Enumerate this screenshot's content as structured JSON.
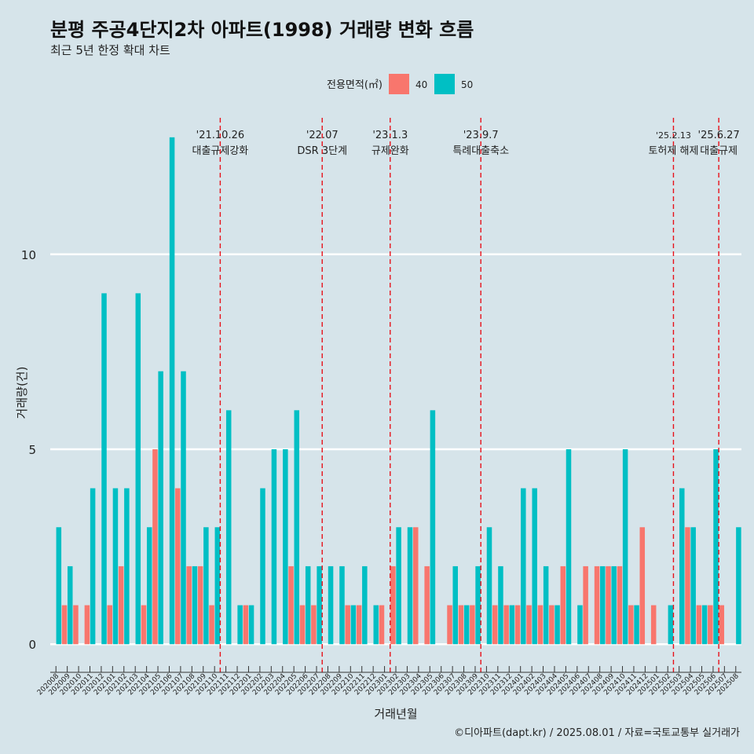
{
  "title": "분평 주공4단지2차 아파트(1998) 거래량 변화 흐름",
  "subtitle": "최근 5년 한정 확대 차트",
  "caption": "©디아파트(dapt.kr) / 2025.08.01 / 자료=국토교통부 실거래가",
  "colors": {
    "40": "#f8766d",
    "50": "#00bfc4",
    "background": "#d6e4ea",
    "grid": "#ffffff",
    "event_line": "#e8111a"
  },
  "chart_data": {
    "type": "bar",
    "xlabel": "거래년월",
    "ylabel": "거래량(건)",
    "ylim": [
      -0.6,
      13.5
    ],
    "yticks": [
      0,
      5,
      10
    ],
    "grid": "horizontal-major",
    "legend": {
      "title": "전용면적(㎡)",
      "placement": "top",
      "entries": [
        "40",
        "50"
      ]
    },
    "categories": [
      "202008",
      "202009",
      "202010",
      "202011",
      "202012",
      "202101",
      "202102",
      "202103",
      "202104",
      "202105",
      "202106",
      "202107",
      "202108",
      "202109",
      "202110",
      "202111",
      "202112",
      "202201",
      "202202",
      "202203",
      "202204",
      "202205",
      "202206",
      "202207",
      "202208",
      "202209",
      "202210",
      "202211",
      "202212",
      "202301",
      "202302",
      "202303",
      "202304",
      "202305",
      "202306",
      "202307",
      "202308",
      "202309",
      "202310",
      "202311",
      "202312",
      "202401",
      "202402",
      "202403",
      "202404",
      "202405",
      "202406",
      "202407",
      "202408",
      "202409",
      "202410",
      "202411",
      "202412",
      "202501",
      "202502",
      "202503",
      "202504",
      "202505",
      "202506",
      "202507",
      "202508"
    ],
    "series": [
      {
        "name": "40",
        "values": [
          0,
          1,
          1,
          1,
          0,
          1,
          2,
          0,
          1,
          5,
          0,
          4,
          2,
          2,
          1,
          0,
          0,
          1,
          0,
          0,
          0,
          2,
          1,
          1,
          0,
          0,
          1,
          1,
          0,
          1,
          2,
          0,
          3,
          2,
          0,
          1,
          1,
          1,
          0,
          1,
          1,
          1,
          1,
          1,
          1,
          2,
          0,
          2,
          2,
          2,
          2,
          1,
          3,
          1,
          0,
          0,
          3,
          1,
          1,
          1,
          0
        ]
      },
      {
        "name": "50",
        "values": [
          3,
          2,
          0,
          4,
          9,
          4,
          4,
          9,
          3,
          7,
          13,
          7,
          2,
          3,
          3,
          6,
          1,
          1,
          4,
          5,
          5,
          6,
          2,
          2,
          2,
          2,
          1,
          2,
          1,
          0,
          3,
          3,
          0,
          6,
          0,
          2,
          1,
          2,
          3,
          2,
          1,
          4,
          4,
          2,
          1,
          5,
          1,
          0,
          2,
          2,
          5,
          1,
          0,
          0,
          1,
          4,
          3,
          1,
          5,
          0,
          3
        ]
      }
    ],
    "events": [
      {
        "after": "202110",
        "date": "'21.10.26",
        "label": "대출규제강화"
      },
      {
        "after": "202207",
        "date": "'22.07",
        "label": "DSR 3단계"
      },
      {
        "after": "202301",
        "date": "'23.1.3",
        "label": "규제완화"
      },
      {
        "after": "202309",
        "date": "'23.9.7",
        "label": "특례대출축소"
      },
      {
        "after": "202502",
        "date": "'25.2.13",
        "label": "토허제 해제"
      },
      {
        "after": "202506",
        "date": "'25.6.27",
        "label": "대출규제"
      }
    ]
  }
}
